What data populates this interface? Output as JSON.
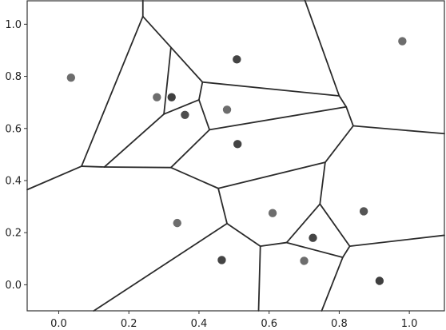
{
  "chart_data": {
    "type": "scatter",
    "title": "",
    "xlabel": "",
    "ylabel": "",
    "xlim": [
      -0.09,
      1.1
    ],
    "ylim": [
      -0.1,
      1.09
    ],
    "grid": false,
    "x_ticks": [
      0.0,
      0.2,
      0.4,
      0.6,
      0.8,
      1.0
    ],
    "x_tick_labels": [
      "0.0",
      "0.2",
      "0.4",
      "0.6",
      "0.8",
      "1.0"
    ],
    "y_ticks": [
      0.0,
      0.2,
      0.4,
      0.6,
      0.8,
      1.0
    ],
    "y_tick_labels": [
      "0.0",
      "0.2",
      "0.4",
      "0.6",
      "0.8",
      "1.0"
    ],
    "points": [
      {
        "x": 0.035,
        "y": 0.795,
        "color": "#6d6d6d"
      },
      {
        "x": 0.28,
        "y": 0.72,
        "color": "#6d6d6d"
      },
      {
        "x": 0.322,
        "y": 0.72,
        "color": "#3f3f3f"
      },
      {
        "x": 0.36,
        "y": 0.652,
        "color": "#4d4d4d"
      },
      {
        "x": 0.508,
        "y": 0.865,
        "color": "#444444"
      },
      {
        "x": 0.48,
        "y": 0.672,
        "color": "#6d6d6d"
      },
      {
        "x": 0.51,
        "y": 0.54,
        "color": "#444444"
      },
      {
        "x": 0.98,
        "y": 0.935,
        "color": "#6d6d6d"
      },
      {
        "x": 0.338,
        "y": 0.237,
        "color": "#6d6d6d"
      },
      {
        "x": 0.61,
        "y": 0.275,
        "color": "#6d6d6d"
      },
      {
        "x": 0.87,
        "y": 0.282,
        "color": "#555555"
      },
      {
        "x": 0.725,
        "y": 0.18,
        "color": "#444444"
      },
      {
        "x": 0.465,
        "y": 0.095,
        "color": "#444444"
      },
      {
        "x": 0.7,
        "y": 0.092,
        "color": "#6d6d6d"
      },
      {
        "x": 0.915,
        "y": 0.015,
        "color": "#3f3f3f"
      }
    ],
    "voronoi_edges": [
      [
        [
          0.24,
          1.1
        ],
        [
          0.24,
          1.03
        ]
      ],
      [
        [
          0.24,
          1.03
        ],
        [
          0.41,
          0.778
        ]
      ],
      [
        [
          0.24,
          1.03
        ],
        [
          0.065,
          0.455
        ]
      ],
      [
        [
          0.065,
          0.455
        ],
        [
          -0.09,
          0.365
        ]
      ],
      [
        [
          0.065,
          0.455
        ],
        [
          0.13,
          0.452
        ]
      ],
      [
        [
          0.13,
          0.452
        ],
        [
          0.3,
          0.655
        ]
      ],
      [
        [
          0.13,
          0.452
        ],
        [
          0.32,
          0.45
        ]
      ],
      [
        [
          0.3,
          0.655
        ],
        [
          0.32,
          0.91
        ]
      ],
      [
        [
          0.3,
          0.655
        ],
        [
          0.4,
          0.71
        ]
      ],
      [
        [
          0.4,
          0.71
        ],
        [
          0.41,
          0.778
        ]
      ],
      [
        [
          0.41,
          0.778
        ],
        [
          0.8,
          0.725
        ]
      ],
      [
        [
          0.4,
          0.71
        ],
        [
          0.43,
          0.595
        ]
      ],
      [
        [
          0.43,
          0.595
        ],
        [
          0.82,
          0.683
        ]
      ],
      [
        [
          0.43,
          0.595
        ],
        [
          0.32,
          0.45
        ]
      ],
      [
        [
          0.32,
          0.45
        ],
        [
          0.455,
          0.37
        ]
      ],
      [
        [
          0.455,
          0.37
        ],
        [
          0.76,
          0.47
        ]
      ],
      [
        [
          0.455,
          0.37
        ],
        [
          0.48,
          0.235
        ]
      ],
      [
        [
          0.48,
          0.235
        ],
        [
          0.1,
          -0.1
        ]
      ],
      [
        [
          0.48,
          0.235
        ],
        [
          0.575,
          0.148
        ]
      ],
      [
        [
          0.575,
          0.148
        ],
        [
          0.57,
          -0.1
        ]
      ],
      [
        [
          0.575,
          0.148
        ],
        [
          0.65,
          0.162
        ]
      ],
      [
        [
          0.65,
          0.162
        ],
        [
          0.745,
          0.31
        ]
      ],
      [
        [
          0.65,
          0.162
        ],
        [
          0.81,
          0.105
        ]
      ],
      [
        [
          0.745,
          0.31
        ],
        [
          0.76,
          0.47
        ]
      ],
      [
        [
          0.745,
          0.31
        ],
        [
          0.83,
          0.148
        ]
      ],
      [
        [
          0.83,
          0.148
        ],
        [
          0.81,
          0.105
        ]
      ],
      [
        [
          0.83,
          0.148
        ],
        [
          1.1,
          0.19
        ]
      ],
      [
        [
          0.81,
          0.105
        ],
        [
          0.75,
          -0.1
        ]
      ],
      [
        [
          0.76,
          0.47
        ],
        [
          0.84,
          0.61
        ]
      ],
      [
        [
          0.84,
          0.61
        ],
        [
          0.82,
          0.683
        ]
      ],
      [
        [
          0.84,
          0.61
        ],
        [
          1.1,
          0.58
        ]
      ],
      [
        [
          0.82,
          0.683
        ],
        [
          0.8,
          0.725
        ]
      ],
      [
        [
          0.8,
          0.725
        ],
        [
          0.7,
          1.1
        ]
      ]
    ]
  }
}
